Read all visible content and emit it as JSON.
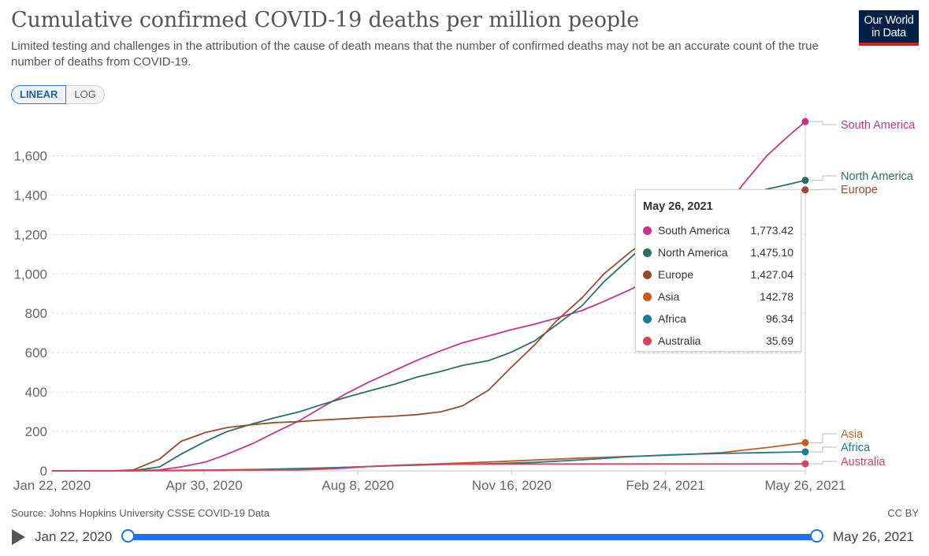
{
  "header": {
    "title": "Cumulative confirmed COVID-19 deaths per million people",
    "subtitle": "Limited testing and challenges in the attribution of the cause of death means that the number of confirmed deaths may not be an accurate count of the true number of deaths from COVID-19.",
    "logo_line1": "Our World",
    "logo_line2": "in Data"
  },
  "scale_toggle": {
    "linear_label": "LINEAR",
    "log_label": "LOG"
  },
  "tooltip": {
    "date": "May 26, 2021",
    "rows": [
      {
        "name": "South America",
        "value": "1,773.42",
        "color": "#c6338f"
      },
      {
        "name": "North America",
        "value": "1,475.10",
        "color": "#2b7065"
      },
      {
        "name": "Europe",
        "value": "1,427.04",
        "color": "#9a4b2b"
      },
      {
        "name": "Asia",
        "value": "142.78",
        "color": "#c85a1b"
      },
      {
        "name": "Africa",
        "value": "96.34",
        "color": "#1c7a95"
      },
      {
        "name": "Australia",
        "value": "35.69",
        "color": "#d8435a"
      }
    ]
  },
  "footer": {
    "source": "Source: Johns Hopkins University CSSE COVID-19 Data",
    "license": "CC BY"
  },
  "timeline": {
    "start_label": "Jan 22, 2020",
    "end_label": "May 26, 2021"
  },
  "chart_data": {
    "type": "line",
    "title": "Cumulative confirmed COVID-19 deaths per million people",
    "xlabel": "",
    "ylabel": "",
    "ylim": [
      0,
      1800
    ],
    "yticks": [
      0,
      200,
      400,
      600,
      800,
      1000,
      1200,
      1400,
      1600
    ],
    "ytick_labels": [
      "0",
      "200",
      "400",
      "600",
      "800",
      "1,000",
      "1,200",
      "1,400",
      "1,600"
    ],
    "xticks": [
      "2020-01-22",
      "2020-04-30",
      "2020-08-08",
      "2020-11-16",
      "2021-02-24",
      "2021-05-26"
    ],
    "xtick_labels": [
      "Jan 22, 2020",
      "Apr 30, 2020",
      "Aug 8, 2020",
      "Nov 16, 2020",
      "Feb 24, 2021",
      "May 26, 2021"
    ],
    "xlim": [
      "2020-01-22",
      "2021-05-26"
    ],
    "grid": true,
    "legend": "end-of-line labels",
    "series": [
      {
        "name": "South America",
        "color": "#c6338f",
        "points": [
          [
            "2020-01-22",
            0
          ],
          [
            "2020-03-15",
            0
          ],
          [
            "2020-04-01",
            5
          ],
          [
            "2020-04-15",
            20
          ],
          [
            "2020-05-01",
            45
          ],
          [
            "2020-05-15",
            85
          ],
          [
            "2020-06-01",
            140
          ],
          [
            "2020-06-15",
            195
          ],
          [
            "2020-07-01",
            255
          ],
          [
            "2020-07-15",
            320
          ],
          [
            "2020-08-01",
            395
          ],
          [
            "2020-08-15",
            450
          ],
          [
            "2020-09-01",
            510
          ],
          [
            "2020-09-15",
            560
          ],
          [
            "2020-10-01",
            610
          ],
          [
            "2020-10-15",
            650
          ],
          [
            "2020-11-01",
            685
          ],
          [
            "2020-11-15",
            715
          ],
          [
            "2020-12-01",
            745
          ],
          [
            "2020-12-15",
            775
          ],
          [
            "2021-01-01",
            815
          ],
          [
            "2021-01-15",
            860
          ],
          [
            "2021-02-01",
            920
          ],
          [
            "2021-02-15",
            975
          ],
          [
            "2021-03-01",
            1040
          ],
          [
            "2021-03-15",
            1140
          ],
          [
            "2021-04-01",
            1300
          ],
          [
            "2021-04-15",
            1450
          ],
          [
            "2021-05-01",
            1600
          ],
          [
            "2021-05-15",
            1700
          ],
          [
            "2021-05-26",
            1773.42
          ]
        ]
      },
      {
        "name": "North America",
        "color": "#2b7065",
        "points": [
          [
            "2020-01-22",
            0
          ],
          [
            "2020-03-15",
            1
          ],
          [
            "2020-04-01",
            20
          ],
          [
            "2020-04-15",
            85
          ],
          [
            "2020-05-01",
            150
          ],
          [
            "2020-05-15",
            200
          ],
          [
            "2020-06-01",
            240
          ],
          [
            "2020-06-15",
            270
          ],
          [
            "2020-07-01",
            300
          ],
          [
            "2020-07-15",
            335
          ],
          [
            "2020-08-01",
            375
          ],
          [
            "2020-08-15",
            405
          ],
          [
            "2020-09-01",
            440
          ],
          [
            "2020-09-15",
            475
          ],
          [
            "2020-10-01",
            505
          ],
          [
            "2020-10-15",
            535
          ],
          [
            "2020-11-01",
            560
          ],
          [
            "2020-11-15",
            600
          ],
          [
            "2020-12-01",
            660
          ],
          [
            "2020-12-15",
            740
          ],
          [
            "2021-01-01",
            840
          ],
          [
            "2021-01-15",
            960
          ],
          [
            "2021-02-01",
            1080
          ],
          [
            "2021-02-15",
            1180
          ],
          [
            "2021-03-01",
            1250
          ],
          [
            "2021-03-15",
            1300
          ],
          [
            "2021-04-01",
            1350
          ],
          [
            "2021-04-15",
            1390
          ],
          [
            "2021-05-01",
            1430
          ],
          [
            "2021-05-15",
            1455
          ],
          [
            "2021-05-26",
            1475.1
          ]
        ]
      },
      {
        "name": "Europe",
        "color": "#9a4b2b",
        "points": [
          [
            "2020-01-22",
            0
          ],
          [
            "2020-03-01",
            0
          ],
          [
            "2020-03-15",
            5
          ],
          [
            "2020-04-01",
            60
          ],
          [
            "2020-04-15",
            150
          ],
          [
            "2020-05-01",
            195
          ],
          [
            "2020-05-15",
            220
          ],
          [
            "2020-06-01",
            235
          ],
          [
            "2020-06-15",
            245
          ],
          [
            "2020-07-01",
            250
          ],
          [
            "2020-07-15",
            258
          ],
          [
            "2020-08-01",
            265
          ],
          [
            "2020-08-15",
            272
          ],
          [
            "2020-09-01",
            278
          ],
          [
            "2020-09-15",
            285
          ],
          [
            "2020-10-01",
            300
          ],
          [
            "2020-10-15",
            330
          ],
          [
            "2020-11-01",
            410
          ],
          [
            "2020-11-15",
            520
          ],
          [
            "2020-12-01",
            640
          ],
          [
            "2020-12-15",
            760
          ],
          [
            "2021-01-01",
            880
          ],
          [
            "2021-01-15",
            1000
          ],
          [
            "2021-02-01",
            1110
          ],
          [
            "2021-02-15",
            1190
          ],
          [
            "2021-03-01",
            1250
          ],
          [
            "2021-03-15",
            1300
          ],
          [
            "2021-04-01",
            1350
          ],
          [
            "2021-04-15",
            1385
          ],
          [
            "2021-05-01",
            1410
          ],
          [
            "2021-05-15",
            1420
          ],
          [
            "2021-05-26",
            1427.04
          ]
        ]
      },
      {
        "name": "Asia",
        "color": "#c85a1b",
        "points": [
          [
            "2020-01-22",
            0
          ],
          [
            "2020-03-01",
            0.5
          ],
          [
            "2020-04-01",
            2
          ],
          [
            "2020-05-01",
            4
          ],
          [
            "2020-06-01",
            7
          ],
          [
            "2020-07-01",
            12
          ],
          [
            "2020-08-01",
            18
          ],
          [
            "2020-09-01",
            27
          ],
          [
            "2020-10-01",
            36
          ],
          [
            "2020-11-01",
            45
          ],
          [
            "2020-12-01",
            55
          ],
          [
            "2021-01-01",
            65
          ],
          [
            "2021-02-01",
            73
          ],
          [
            "2021-03-01",
            80
          ],
          [
            "2021-04-01",
            92
          ],
          [
            "2021-05-01",
            118
          ],
          [
            "2021-05-15",
            132
          ],
          [
            "2021-05-26",
            142.78
          ]
        ]
      },
      {
        "name": "Africa",
        "color": "#1c7a95",
        "points": [
          [
            "2020-01-22",
            0
          ],
          [
            "2020-04-01",
            0.5
          ],
          [
            "2020-05-01",
            2
          ],
          [
            "2020-06-01",
            5
          ],
          [
            "2020-07-01",
            10
          ],
          [
            "2020-08-01",
            18
          ],
          [
            "2020-09-01",
            26
          ],
          [
            "2020-10-01",
            32
          ],
          [
            "2020-11-01",
            36
          ],
          [
            "2020-12-01",
            43
          ],
          [
            "2021-01-01",
            56
          ],
          [
            "2021-02-01",
            72
          ],
          [
            "2021-03-01",
            82
          ],
          [
            "2021-04-01",
            88
          ],
          [
            "2021-05-01",
            93
          ],
          [
            "2021-05-26",
            96.34
          ]
        ]
      },
      {
        "name": "Australia",
        "color": "#d8435a",
        "points": [
          [
            "2020-01-22",
            0
          ],
          [
            "2020-03-15",
            0.5
          ],
          [
            "2020-04-15",
            3
          ],
          [
            "2020-06-01",
            4
          ],
          [
            "2020-07-01",
            5
          ],
          [
            "2020-07-15",
            8
          ],
          [
            "2020-08-01",
            14
          ],
          [
            "2020-08-15",
            22
          ],
          [
            "2020-09-01",
            28
          ],
          [
            "2020-09-15",
            32
          ],
          [
            "2020-10-15",
            34
          ],
          [
            "2020-12-01",
            34.5
          ],
          [
            "2021-02-01",
            35
          ],
          [
            "2021-05-26",
            35.69
          ]
        ]
      }
    ]
  }
}
